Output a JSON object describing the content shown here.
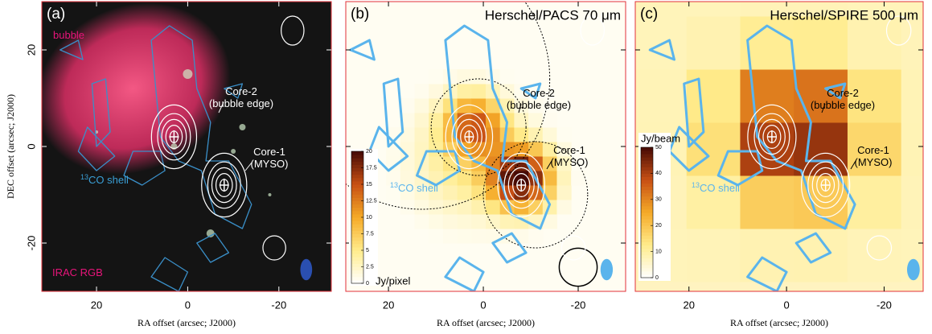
{
  "chart_data": [
    {
      "type": "image",
      "panel_label": "(a)",
      "annotations": [
        {
          "lines": [
            "bubble"
          ],
          "color": "#e8147a"
        },
        {
          "lines": [
            "Core-2",
            "(bubble edge)"
          ],
          "color": "#ffffff"
        },
        {
          "lines": [
            "Core-1",
            "(MYSO)"
          ],
          "color": "#ffffff"
        },
        {
          "sup": "13",
          "lines": [
            "CO shell"
          ],
          "color": "#3a9fd6"
        },
        {
          "lines": [
            "IRAC RGB"
          ],
          "color": "#e8147a"
        }
      ],
      "xlabel": "RA offset (arcsec; J2000)",
      "ylabel": "DEC offset (arcsec; J2000)",
      "xlim": [
        32,
        -31.5
      ],
      "ylim": [
        -30,
        30
      ],
      "xticks": [
        20,
        0,
        -20
      ],
      "yticks": [
        -20,
        0,
        20
      ],
      "ytick_labels": true
    },
    {
      "type": "image",
      "panel_label": "(b)",
      "title": "Herschel/PACS 70 μm",
      "annotations": [
        {
          "lines": [
            "Core-2",
            "(bubble edge)"
          ],
          "color": "#000000"
        },
        {
          "lines": [
            "Core-1",
            "(MYSO)"
          ],
          "color": "#000000"
        },
        {
          "sup": "13",
          "lines": [
            "CO shell"
          ],
          "color": "#5ab4ec"
        }
      ],
      "xlabel": "RA offset (arcsec; J2000)",
      "xlim": [
        29,
        -30
      ],
      "ylim": [
        -30,
        30
      ],
      "xticks": [
        20,
        0,
        -20
      ],
      "yticks": [
        -20,
        0,
        20
      ],
      "ytick_labels": false,
      "colorbar": {
        "label": "Jy/pixel",
        "lim": [
          0,
          20
        ],
        "ticks": [
          0,
          2.5,
          5,
          7.5,
          10,
          12.5,
          15,
          17.5,
          20
        ]
      }
    },
    {
      "type": "image",
      "panel_label": "(c)",
      "title": "Herschel/SPIRE 500 μm",
      "annotations": [
        {
          "lines": [
            "Core-2",
            "(bubble edge)"
          ],
          "color": "#000000"
        },
        {
          "lines": [
            "Core-1",
            "(MYSO)"
          ],
          "color": "#000000"
        },
        {
          "sup": "13",
          "lines": [
            "CO shell"
          ],
          "color": "#5ab4ec"
        }
      ],
      "xlabel": "RA offset (arcsec; J2000)",
      "xlim": [
        31,
        -28
      ],
      "ylim": [
        -30,
        30
      ],
      "xticks": [
        20,
        0,
        -20
      ],
      "yticks": [
        -20,
        0,
        20
      ],
      "ytick_labels": false,
      "colorbar": {
        "label": "Jy/beam",
        "lim": [
          0,
          50
        ],
        "ticks": [
          0,
          10,
          20,
          30,
          40,
          50
        ]
      }
    }
  ]
}
